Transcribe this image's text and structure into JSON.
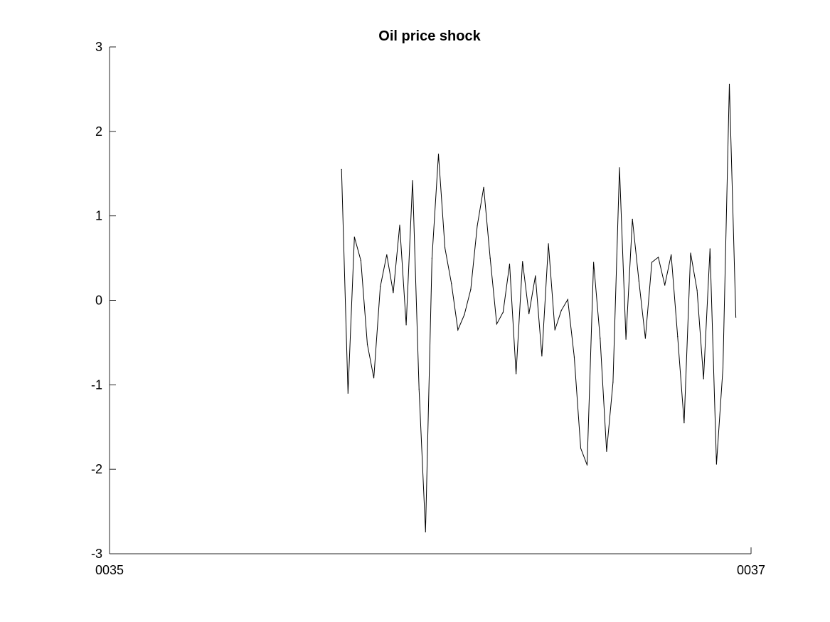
{
  "chart_data": {
    "type": "line",
    "title": "Oil price shock",
    "xlabel": "",
    "ylabel": "",
    "ylim": [
      -3,
      3
    ],
    "yticks": [
      3,
      2,
      1,
      0,
      -1,
      -2,
      -3
    ],
    "yticklabels": [
      "3",
      "2",
      "1",
      "0",
      "-1",
      "-2",
      "-3"
    ],
    "xlim": [
      0,
      1
    ],
    "xticks": [
      0,
      1
    ],
    "xticklabels": [
      "0035",
      "0037"
    ],
    "grid": false,
    "legend": "none",
    "line_color": "#000000",
    "series": [
      {
        "x": [
          0.3616,
          0.3717,
          0.3817,
          0.3918,
          0.4019,
          0.412,
          0.4221,
          0.4321,
          0.4422,
          0.4523,
          0.4624,
          0.4724,
          0.4825,
          0.4926,
          0.5027,
          0.5128,
          0.5228,
          0.5329,
          0.543,
          0.5531,
          0.5631,
          0.5732,
          0.5833,
          0.5934,
          0.6035,
          0.6135,
          0.6236,
          0.6337,
          0.6438,
          0.6538,
          0.6639,
          0.674,
          0.6841,
          0.6942,
          0.7042,
          0.7143,
          0.7244,
          0.7345,
          0.7445,
          0.7546,
          0.7647,
          0.7748,
          0.7848,
          0.7949,
          0.805,
          0.8151,
          0.8252,
          0.8352,
          0.8453,
          0.8554,
          0.8655,
          0.8755,
          0.8856,
          0.8957,
          0.9058,
          0.9159,
          0.9259,
          0.936,
          0.9461,
          0.9562,
          0.9662,
          0.9763
        ],
        "y": [
          1.55,
          -1.1,
          0.75,
          0.47,
          -0.52,
          -0.92,
          0.16,
          0.54,
          0.09,
          0.89,
          -0.29,
          1.42,
          -1.05,
          -2.74,
          0.5,
          1.73,
          0.62,
          0.2,
          -0.35,
          -0.17,
          0.13,
          0.88,
          1.34,
          0.5,
          -0.28,
          -0.14,
          0.43,
          -0.87,
          0.46,
          -0.16,
          0.29,
          -0.66,
          0.67,
          -0.35,
          -0.12,
          0.01,
          -0.67,
          -1.75,
          -1.95,
          0.45,
          -0.45,
          -1.79,
          -0.97,
          1.57,
          -0.46,
          0.96,
          0.23,
          -0.45,
          0.45,
          0.51,
          0.18,
          0.54,
          -0.43,
          -1.45,
          0.56,
          0.12,
          -0.93,
          0.61,
          -1.94,
          -0.8,
          2.56,
          -0.2
        ]
      }
    ]
  }
}
